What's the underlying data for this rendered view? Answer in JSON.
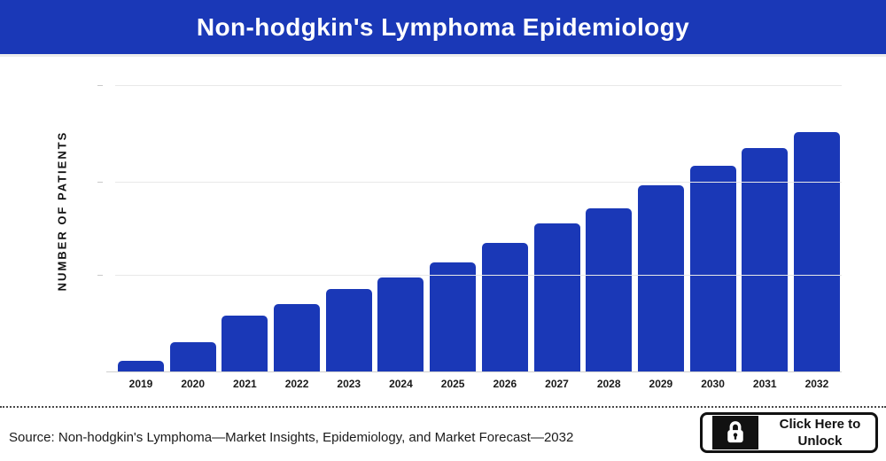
{
  "header": {
    "title": "Non-hodgkin's Lymphoma Epidemiology"
  },
  "chart": {
    "y_axis_label": "NUMBER OF PATIENTS"
  },
  "chart_data": {
    "type": "bar",
    "title": "Non-hodgkin's Lymphoma Epidemiology",
    "xlabel": "",
    "ylabel": "NUMBER OF PATIENTS",
    "categories": [
      "2019",
      "2020",
      "2021",
      "2022",
      "2023",
      "2024",
      "2025",
      "2026",
      "2027",
      "2028",
      "2029",
      "2030",
      "2031",
      "2032"
    ],
    "values": [
      4.4,
      12.2,
      23.3,
      28.1,
      34.4,
      39.3,
      45.6,
      53.7,
      61.9,
      68.1,
      77.8,
      85.9,
      93.3,
      100
    ],
    "units": "relative height, % of 2032 bar (y-axis shows no numeric tick labels)",
    "ylim": [
      0,
      130
    ],
    "gridlines_at": [
      40.4,
      79.3,
      119.6
    ],
    "grid": "horizontal",
    "legend": "none"
  },
  "colors": {
    "header_blue": "#1a38b7",
    "bar_blue": "#1a38b7",
    "gridline_gray": "#e8e8e8",
    "axis_gray": "#cfcfcf",
    "text_dark": "#111111"
  },
  "footer": {
    "source_text": "Source: Non-hodgkin's Lymphoma—Market Insights, Epidemiology, and Market Forecast—2032",
    "unlock_button": {
      "label": "Click Here to Unlock",
      "icon": "lock-icon"
    }
  }
}
